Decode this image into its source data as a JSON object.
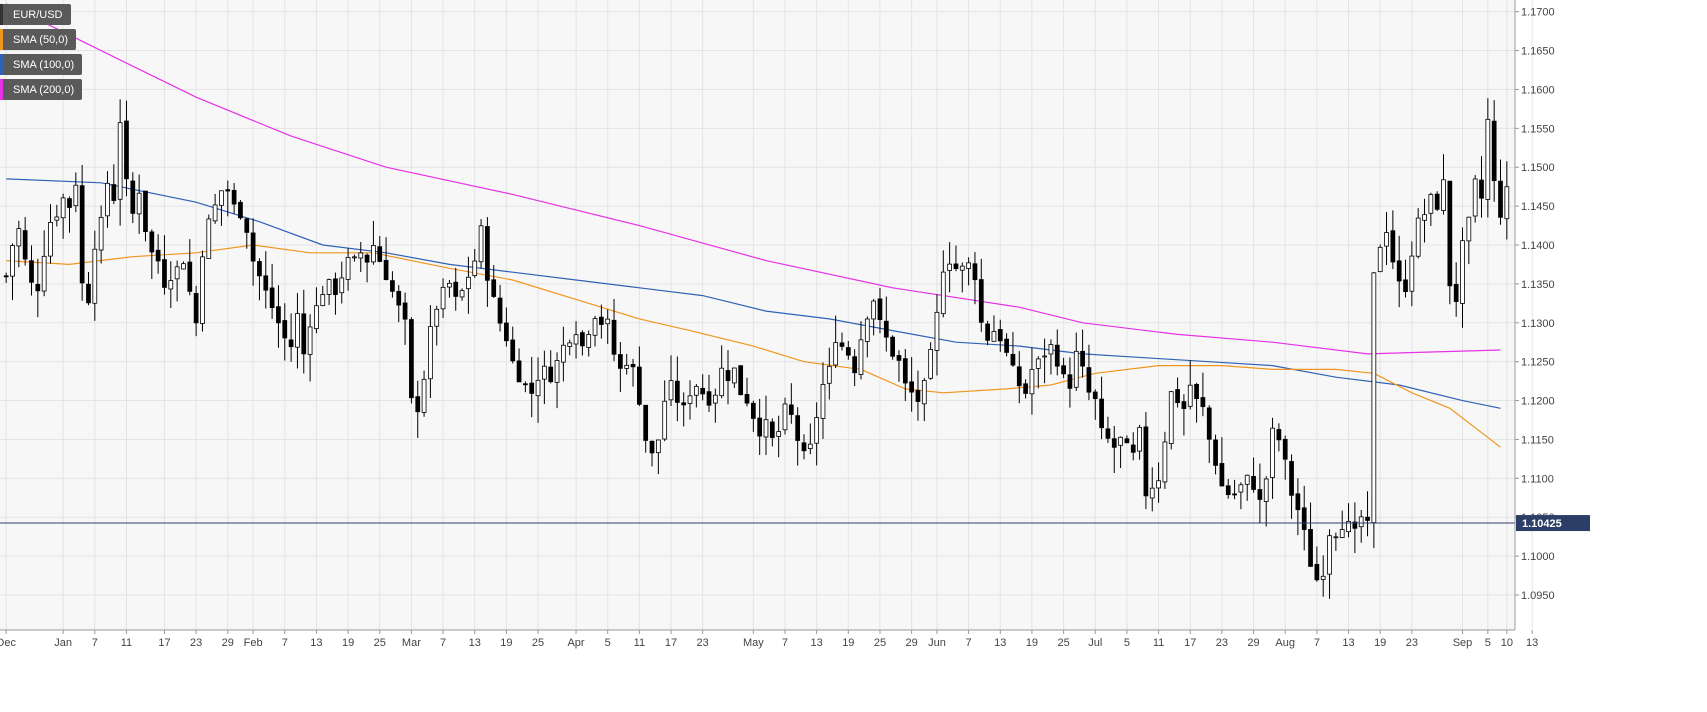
{
  "chart_data": {
    "type": "candlestick",
    "title": "EUR/USD",
    "indicators": [
      {
        "name": "SMA (50,0)",
        "color": "#f0961e"
      },
      {
        "name": "SMA (100,0)",
        "color": "#2f62b5"
      },
      {
        "name": "SMA (200,0)",
        "color": "#e632e6"
      }
    ],
    "current_price": "1.10425",
    "ylim": [
      1.0905,
      1.1715
    ],
    "y_ticks": [
      "1.1700",
      "1.1650",
      "1.1600",
      "1.1550",
      "1.1500",
      "1.1450",
      "1.1400",
      "1.1350",
      "1.1300",
      "1.1250",
      "1.1200",
      "1.1150",
      "1.1100",
      "1.1050",
      "1.1000",
      "1.0950"
    ],
    "x_ticks": [
      "Dec",
      "Jan",
      "7",
      "11",
      "17",
      "23",
      "29",
      "Feb",
      "7",
      "13",
      "19",
      "25",
      "Mar",
      "7",
      "13",
      "19",
      "25",
      "Apr",
      "5",
      "11",
      "17",
      "23",
      "May",
      "7",
      "13",
      "19",
      "25",
      "29",
      "Jun",
      "7",
      "13",
      "19",
      "25",
      "Jul",
      "5",
      "11",
      "17",
      "23",
      "29",
      "Aug",
      "7",
      "13",
      "19",
      "23",
      "Sep",
      "5",
      "10",
      "13"
    ],
    "x_tick_index": [
      0,
      9,
      14,
      19,
      25,
      30,
      35,
      39,
      44,
      49,
      54,
      59,
      64,
      69,
      74,
      79,
      84,
      90,
      95,
      100,
      105,
      110,
      118,
      123,
      128,
      133,
      138,
      143,
      147,
      152,
      157,
      162,
      167,
      172,
      177,
      182,
      187,
      192,
      197,
      202,
      207,
      212,
      217,
      222,
      230,
      234,
      237,
      241
    ],
    "grid": true,
    "legend_position": "top-left",
    "sma50": {
      "start": 1.138,
      "points": [
        [
          0,
          1.138
        ],
        [
          10,
          1.1375
        ],
        [
          20,
          1.1385
        ],
        [
          30,
          1.139
        ],
        [
          39,
          1.14
        ],
        [
          48,
          1.139
        ],
        [
          58,
          1.139
        ],
        [
          70,
          1.137
        ],
        [
          80,
          1.1355
        ],
        [
          90,
          1.133
        ],
        [
          100,
          1.1305
        ],
        [
          108,
          1.129
        ],
        [
          118,
          1.127
        ],
        [
          126,
          1.125
        ],
        [
          135,
          1.124
        ],
        [
          142,
          1.1215
        ],
        [
          148,
          1.121
        ],
        [
          158,
          1.1215
        ],
        [
          165,
          1.122
        ],
        [
          172,
          1.1235
        ],
        [
          182,
          1.1245
        ],
        [
          192,
          1.1245
        ],
        [
          200,
          1.124
        ],
        [
          210,
          1.124
        ],
        [
          216,
          1.1235
        ],
        [
          222,
          1.121
        ],
        [
          228,
          1.119
        ],
        [
          236,
          1.114
        ]
      ]
    },
    "sma100": {
      "points": [
        [
          0,
          1.1485
        ],
        [
          15,
          1.148
        ],
        [
          30,
          1.1455
        ],
        [
          40,
          1.143
        ],
        [
          50,
          1.14
        ],
        [
          60,
          1.139
        ],
        [
          70,
          1.1375
        ],
        [
          80,
          1.1365
        ],
        [
          90,
          1.1355
        ],
        [
          100,
          1.1345
        ],
        [
          110,
          1.1335
        ],
        [
          120,
          1.1315
        ],
        [
          130,
          1.1305
        ],
        [
          140,
          1.129
        ],
        [
          150,
          1.1275
        ],
        [
          160,
          1.127
        ],
        [
          170,
          1.126
        ],
        [
          180,
          1.1255
        ],
        [
          190,
          1.125
        ],
        [
          200,
          1.1245
        ],
        [
          210,
          1.123
        ],
        [
          220,
          1.122
        ],
        [
          230,
          1.12
        ],
        [
          236,
          1.119
        ]
      ]
    },
    "sma200": {
      "points": [
        [
          0,
          1.171
        ],
        [
          15,
          1.165
        ],
        [
          30,
          1.159
        ],
        [
          45,
          1.154
        ],
        [
          60,
          1.15
        ],
        [
          80,
          1.1465
        ],
        [
          100,
          1.1425
        ],
        [
          120,
          1.138
        ],
        [
          140,
          1.1345
        ],
        [
          160,
          1.132
        ],
        [
          170,
          1.13
        ],
        [
          185,
          1.1285
        ],
        [
          200,
          1.1275
        ],
        [
          215,
          1.126
        ],
        [
          236,
          1.1265
        ]
      ]
    },
    "candles": {
      "count": 238,
      "seed_closes": [
        1.136,
        1.14,
        1.142,
        1.138,
        1.135,
        1.1345,
        1.139,
        1.143,
        1.144,
        1.146,
        1.145,
        1.148,
        1.135,
        1.133,
        1.14,
        1.143,
        1.148,
        1.146,
        1.156,
        1.148,
        1.144,
        1.147,
        1.142,
        1.139,
        1.138,
        1.135,
        1.136,
        1.137,
        1.138,
        1.134,
        1.13,
        1.139,
        1.143,
        1.145,
        1.147,
        1.147,
        1.145,
        1.144,
        1.142,
        1.138,
        1.136,
        1.134,
        1.132,
        1.13,
        1.128,
        1.127,
        1.131,
        1.126,
        1.13,
        1.132,
        1.134,
        1.135,
        1.134,
        1.136,
        1.138,
        1.138,
        1.139,
        1.138,
        1.14,
        1.138,
        1.136,
        1.134,
        1.132,
        1.13,
        1.12,
        1.119,
        1.123,
        1.129,
        1.132,
        1.134,
        1.135,
        1.133,
        1.134,
        1.136,
        1.138,
        1.142,
        1.136,
        1.133,
        1.13,
        1.128,
        1.125,
        1.123,
        1.122,
        1.121,
        1.123,
        1.124,
        1.123,
        1.125,
        1.127,
        1.128,
        1.129,
        1.127,
        1.129,
        1.131,
        1.13,
        1.13,
        1.126,
        1.124,
        1.125,
        1.124,
        1.12,
        1.115,
        1.113,
        1.115,
        1.12,
        1.122,
        1.12,
        1.119,
        1.121,
        1.122,
        1.121,
        1.12,
        1.121,
        1.124,
        1.123,
        1.124,
        1.121,
        1.12,
        1.118,
        1.116,
        1.117,
        1.115,
        1.116,
        1.119,
        1.118,
        1.115,
        1.113,
        1.114,
        1.118,
        1.122,
        1.124,
        1.128,
        1.127,
        1.126,
        1.124,
        1.128,
        1.131,
        1.133,
        1.13,
        1.128,
        1.126,
        1.125,
        1.122,
        1.121,
        1.12,
        1.122,
        1.126,
        1.131,
        1.137,
        1.138,
        1.137,
        1.137,
        1.1375,
        1.136,
        1.13,
        1.128,
        1.129,
        1.128,
        1.126,
        1.124,
        1.122,
        1.121,
        1.124,
        1.125,
        1.126,
        1.127,
        1.125,
        1.123,
        1.122,
        1.126,
        1.124,
        1.121,
        1.12,
        1.116,
        1.115,
        1.114,
        1.115,
        1.114,
        1.113,
        1.116,
        1.108,
        1.109,
        1.11,
        1.115,
        1.121,
        1.12,
        1.119,
        1.122,
        1.12,
        1.119,
        1.115,
        1.112,
        1.109,
        1.108,
        1.108,
        1.109,
        1.11,
        1.109,
        1.107,
        1.11,
        1.116,
        1.115,
        1.112,
        1.108,
        1.106,
        1.103,
        1.099,
        1.097,
        1.098,
        1.103,
        1.103,
        1.104,
        1.104,
        1.103,
        1.105,
        1.104
      ]
    }
  }
}
